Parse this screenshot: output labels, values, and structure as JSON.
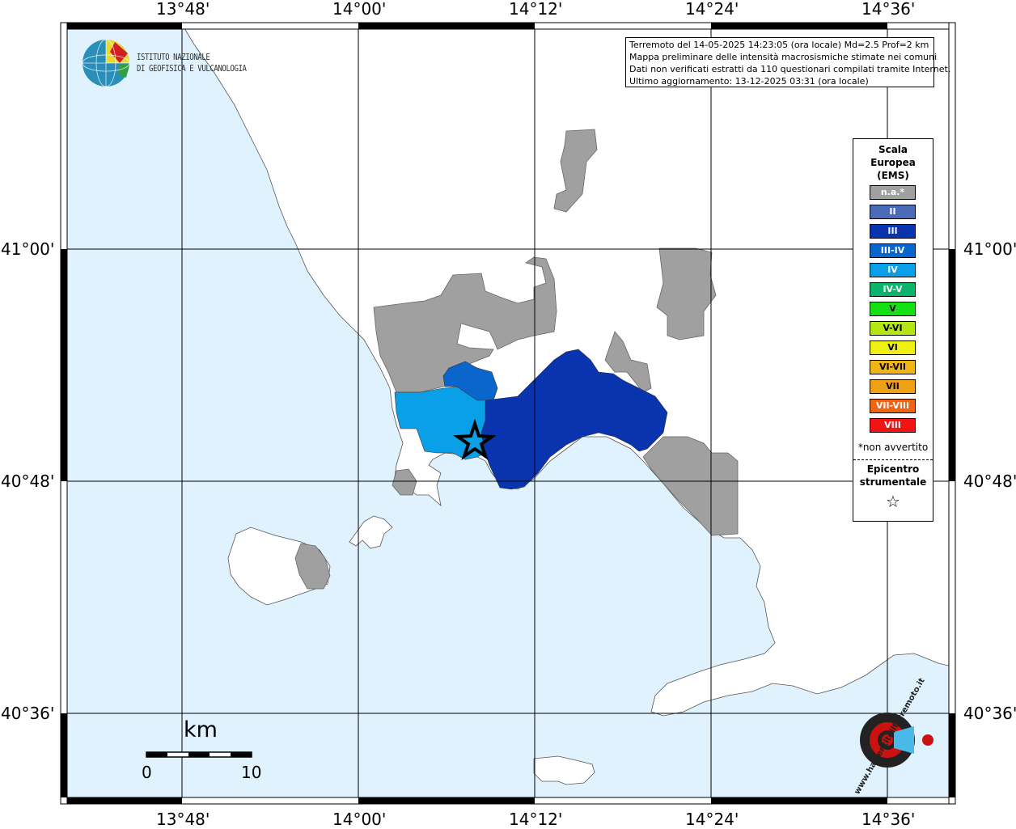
{
  "map": {
    "top_axis_labels": [
      "13°48'",
      "14°00'",
      "14°12'",
      "14°24'",
      "14°36'"
    ],
    "bottom_axis_labels": [
      "13°48'",
      "14°00'",
      "14°12'",
      "14°24'",
      "14°36'"
    ],
    "left_axis_labels": [
      "41°00'",
      "40°48'",
      "40°36'"
    ],
    "right_axis_labels": [
      "41°00'",
      "40°48'",
      "40°36'"
    ],
    "sea_color": "#e0f2fd",
    "land_color": "#ffffff"
  },
  "institute": {
    "name_line1": "ISTITUTO NAZIONALE",
    "name_line2": "DI GEOFISICA E VULCANOLOGIA"
  },
  "info": {
    "line1": "Terremoto del 14-05-2025 14:23:05 (ora locale) Md=2.5 Prof=2 km",
    "line2": "Mappa preliminare delle intensità macrosismiche stimate nei comuni",
    "line3": "Dati non verificati estratti da 110 questionari compilati tramite Internet.",
    "line4": "Ultimo aggiornamento: 13-12-2025 03:31 (ora locale)"
  },
  "legend": {
    "title_line1": "Scala",
    "title_line2": "Europea",
    "title_line3": "(EMS)",
    "items": [
      {
        "label": "n.a.*",
        "color": "#a0a0a0"
      },
      {
        "label": "II",
        "color": "#4a6bb8"
      },
      {
        "label": "III",
        "color": "#0a33b0"
      },
      {
        "label": "III-IV",
        "color": "#0a66cc"
      },
      {
        "label": "IV",
        "color": "#0aa0e8"
      },
      {
        "label": "IV-V",
        "color": "#0ab46a"
      },
      {
        "label": "V",
        "color": "#14e014"
      },
      {
        "label": "V-VI",
        "color": "#b4e614"
      },
      {
        "label": "VI",
        "color": "#f0f014"
      },
      {
        "label": "VI-VII",
        "color": "#f0b414"
      },
      {
        "label": "VII",
        "color": "#f0a014"
      },
      {
        "label": "VII-VIII",
        "color": "#f06414"
      },
      {
        "label": "VIII",
        "color": "#f01414"
      }
    ],
    "note": "*non avvertito",
    "epicenter_line1": "Epicentro",
    "epicenter_line2": "strumentale",
    "epicenter_symbol": "☆"
  },
  "scale_bar": {
    "unit": "km",
    "min_label": "0",
    "max_label": "10"
  },
  "watermark": {
    "text": "www.haisentitoilterremoto.it"
  }
}
